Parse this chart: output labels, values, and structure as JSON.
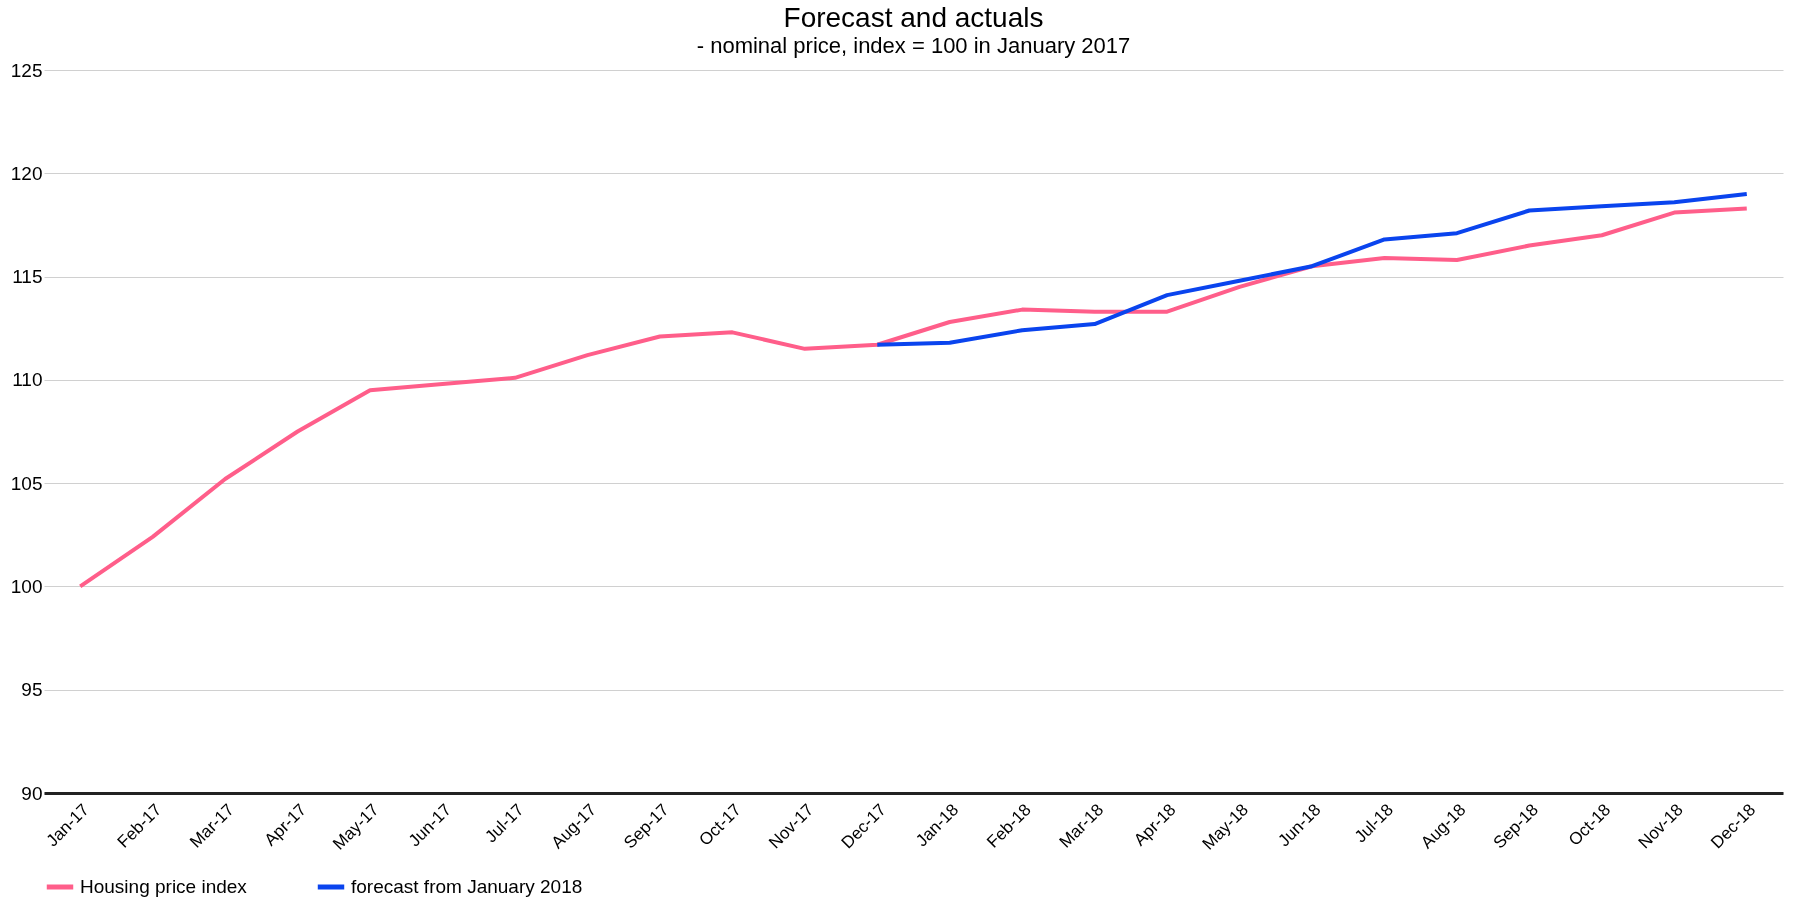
{
  "chart_data": {
    "type": "line",
    "title": "Forecast and actuals",
    "subtitle": "- nominal price, index = 100 in January 2017",
    "categories": [
      "Jan-17",
      "Feb-17",
      "Mar-17",
      "Apr-17",
      "May-17",
      "Jun-17",
      "Jul-17",
      "Aug-17",
      "Sep-17",
      "Oct-17",
      "Nov-17",
      "Dec-17",
      "Jan-18",
      "Feb-18",
      "Mar-18",
      "Apr-18",
      "May-18",
      "Jun-18",
      "Jul-18",
      "Aug-18",
      "Sep-18",
      "Oct-18",
      "Nov-18",
      "Dec-18"
    ],
    "series": [
      {
        "name": "Housing price index",
        "color": "#ff5e8a",
        "values": [
          100.0,
          102.4,
          105.2,
          107.5,
          109.5,
          109.8,
          110.1,
          111.2,
          112.1,
          112.3,
          111.5,
          111.7,
          112.8,
          113.4,
          113.3,
          113.3,
          114.5,
          115.5,
          115.9,
          115.8,
          116.5,
          117.0,
          118.1,
          118.3
        ]
      },
      {
        "name": "forecast from January 2018",
        "color": "#0a44ee",
        "values": [
          null,
          null,
          null,
          null,
          null,
          null,
          null,
          null,
          null,
          null,
          null,
          111.7,
          111.8,
          112.4,
          112.7,
          114.1,
          114.8,
          115.5,
          116.8,
          117.1,
          118.2,
          118.4,
          118.6,
          119.0
        ]
      }
    ],
    "ylim": [
      90,
      125
    ],
    "yticks": [
      90,
      95,
      100,
      105,
      110,
      115,
      120,
      125
    ],
    "grid": "y",
    "legend": "bottom",
    "line_style": "solid",
    "marker": "none"
  }
}
